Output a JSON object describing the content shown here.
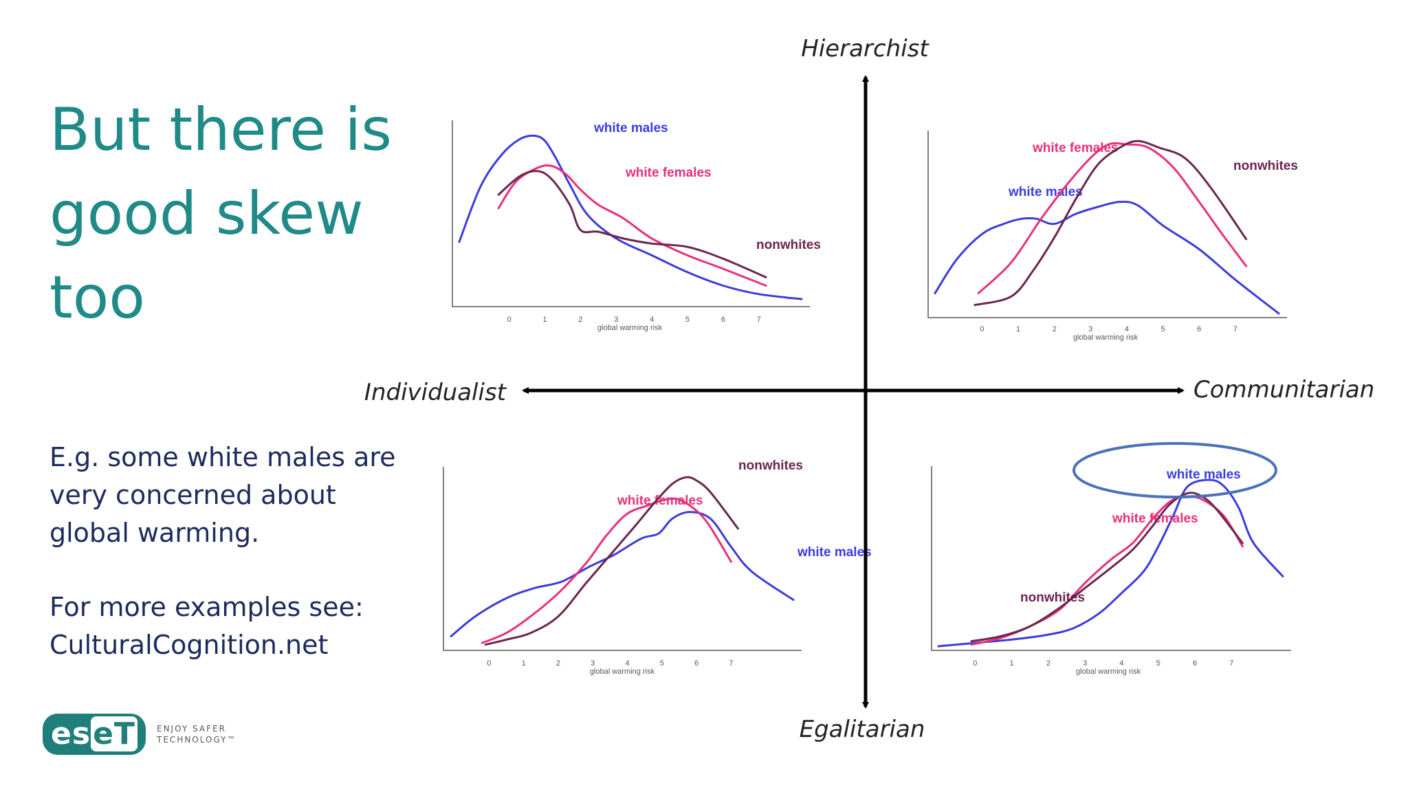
{
  "slide": {
    "title_lines": [
      "But there is",
      "good skew",
      "too"
    ],
    "body_1": [
      "E.g. some white males are",
      "very concerned about",
      "global warming."
    ],
    "body_2": [
      "For more examples see:",
      "CulturalCognition.net"
    ]
  },
  "logo": {
    "part1": "es",
    "part2": "eT",
    "tagline": [
      "ENJOY SAFER",
      "TECHNOLOGY™"
    ]
  },
  "figure": {
    "axes": {
      "top": "Hierarchist",
      "bottom": "Egalitarian",
      "left": "Individualist",
      "right": "Communitarian"
    },
    "colors": {
      "white males": "#3b3bdc",
      "white females": "#e8307a",
      "nonwhites": "#6b2550",
      "axis": "#000000",
      "highlight": "#4a72b8"
    }
  },
  "chart_data": [
    {
      "type": "line",
      "panel": "hierarchist-individualist",
      "xlabel": "global warming risk",
      "xticks": [
        0,
        1,
        2,
        3,
        4,
        5,
        6,
        7
      ],
      "xlim": [
        -1.4,
        8.2
      ],
      "ylim": [
        0,
        1
      ],
      "series": [
        {
          "name": "white males",
          "x": [
            -1.4,
            -0.8,
            -0.2,
            0.3,
            0.7,
            1.0,
            1.3,
            1.7,
            2.2,
            3.0,
            4.0,
            5.0,
            6.0,
            7.0,
            8.2
          ],
          "values": [
            0.36,
            0.69,
            0.88,
            0.97,
            0.99,
            0.96,
            0.86,
            0.7,
            0.52,
            0.38,
            0.28,
            0.18,
            0.1,
            0.05,
            0.02
          ]
        },
        {
          "name": "white females",
          "x": [
            -0.3,
            0.2,
            0.8,
            1.2,
            1.6,
            2.0,
            2.5,
            3.2,
            4.0,
            5.0,
            6.0,
            7.2
          ],
          "values": [
            0.56,
            0.72,
            0.8,
            0.81,
            0.76,
            0.67,
            0.58,
            0.5,
            0.38,
            0.28,
            0.2,
            0.1
          ]
        },
        {
          "name": "nonwhites",
          "x": [
            -0.3,
            0.3,
            0.8,
            1.2,
            1.7,
            2.0,
            2.5,
            3.2,
            4.0,
            5.0,
            6.0,
            7.2
          ],
          "values": [
            0.64,
            0.75,
            0.78,
            0.73,
            0.58,
            0.43,
            0.42,
            0.38,
            0.35,
            0.33,
            0.26,
            0.15
          ]
        }
      ]
    },
    {
      "type": "line",
      "panel": "hierarchist-communitarian",
      "xlabel": "global warming risk",
      "xticks": [
        0,
        1,
        2,
        3,
        4,
        5,
        6,
        7
      ],
      "xlim": [
        -1.3,
        8.2
      ],
      "ylim": [
        0,
        1
      ],
      "series": [
        {
          "name": "white males",
          "x": [
            -1.3,
            -0.7,
            0.0,
            0.6,
            1.1,
            1.5,
            2.0,
            2.6,
            3.2,
            3.8,
            4.3,
            5.0,
            6.0,
            7.0,
            8.2
          ],
          "values": [
            0.12,
            0.32,
            0.47,
            0.53,
            0.56,
            0.56,
            0.53,
            0.59,
            0.63,
            0.66,
            0.64,
            0.52,
            0.38,
            0.2,
            0.0
          ]
        },
        {
          "name": "white females",
          "x": [
            -0.1,
            0.8,
            1.6,
            2.3,
            3.0,
            3.5,
            4.0,
            4.6,
            5.3,
            6.0,
            6.6,
            7.3
          ],
          "values": [
            0.12,
            0.3,
            0.55,
            0.75,
            0.92,
            1.0,
            1.0,
            0.98,
            0.86,
            0.66,
            0.48,
            0.28
          ]
        },
        {
          "name": "nonwhites",
          "x": [
            -0.2,
            0.8,
            1.4,
            2.0,
            2.6,
            3.2,
            3.8,
            4.3,
            4.9,
            5.6,
            6.3,
            7.3
          ],
          "values": [
            0.05,
            0.1,
            0.25,
            0.45,
            0.68,
            0.88,
            0.98,
            1.02,
            0.98,
            0.92,
            0.75,
            0.44
          ]
        }
      ]
    },
    {
      "type": "line",
      "panel": "egalitarian-individualist",
      "xlabel": "global warming risk",
      "xticks": [
        0,
        1,
        2,
        3,
        4,
        5,
        6,
        7
      ],
      "xlim": [
        -1.1,
        8.8
      ],
      "ylim": [
        0,
        1
      ],
      "series": [
        {
          "name": "white males",
          "x": [
            -1.1,
            -0.4,
            0.5,
            1.3,
            2.1,
            2.9,
            3.6,
            4.4,
            4.9,
            5.3,
            5.8,
            6.4,
            7.0,
            7.6,
            8.8
          ],
          "values": [
            0.06,
            0.18,
            0.29,
            0.35,
            0.39,
            0.48,
            0.55,
            0.65,
            0.68,
            0.77,
            0.81,
            0.77,
            0.6,
            0.45,
            0.28
          ]
        },
        {
          "name": "white females",
          "x": [
            -0.2,
            0.5,
            1.2,
            2.0,
            2.8,
            3.4,
            4.0,
            4.6,
            5.0,
            5.4,
            5.8,
            6.3,
            7.0
          ],
          "values": [
            0.02,
            0.08,
            0.18,
            0.32,
            0.5,
            0.67,
            0.8,
            0.85,
            0.88,
            0.89,
            0.85,
            0.75,
            0.51
          ]
        },
        {
          "name": "nonwhites",
          "x": [
            -0.1,
            0.5,
            1.2,
            2.0,
            2.8,
            3.5,
            4.2,
            4.8,
            5.3,
            5.7,
            6.0,
            6.4,
            7.2
          ],
          "values": [
            0.01,
            0.04,
            0.08,
            0.18,
            0.38,
            0.55,
            0.72,
            0.87,
            0.98,
            1.02,
            1.0,
            0.93,
            0.71
          ]
        }
      ]
    },
    {
      "type": "line",
      "panel": "egalitarian-communitarian",
      "xlabel": "global warming risk",
      "xticks": [
        0,
        1,
        2,
        3,
        4,
        5,
        6,
        7
      ],
      "xlim": [
        -1.0,
        8.4
      ],
      "ylim": [
        0,
        1
      ],
      "series": [
        {
          "name": "white males",
          "x": [
            -1.0,
            0.0,
            1.0,
            2.0,
            2.7,
            3.4,
            4.0,
            4.6,
            5.0,
            5.4,
            5.8,
            6.4,
            6.8,
            7.2,
            7.6,
            8.4
          ],
          "values": [
            0.0,
            0.02,
            0.04,
            0.07,
            0.11,
            0.2,
            0.32,
            0.45,
            0.6,
            0.78,
            0.96,
            1.0,
            0.96,
            0.83,
            0.62,
            0.42
          ]
        },
        {
          "name": "white females",
          "x": [
            -0.1,
            0.7,
            1.5,
            2.3,
            3.0,
            3.7,
            4.3,
            4.9,
            5.4,
            5.9,
            6.3,
            6.8,
            7.3
          ],
          "values": [
            0.01,
            0.05,
            0.12,
            0.22,
            0.38,
            0.52,
            0.62,
            0.78,
            0.88,
            0.9,
            0.87,
            0.78,
            0.6
          ]
        },
        {
          "name": "nonwhites",
          "x": [
            -0.1,
            0.7,
            1.5,
            2.3,
            3.0,
            3.7,
            4.3,
            4.8,
            5.3,
            5.8,
            6.2,
            6.6,
            7.3
          ],
          "values": [
            0.03,
            0.06,
            0.12,
            0.23,
            0.35,
            0.47,
            0.58,
            0.71,
            0.85,
            0.92,
            0.9,
            0.82,
            0.62
          ]
        }
      ]
    }
  ]
}
